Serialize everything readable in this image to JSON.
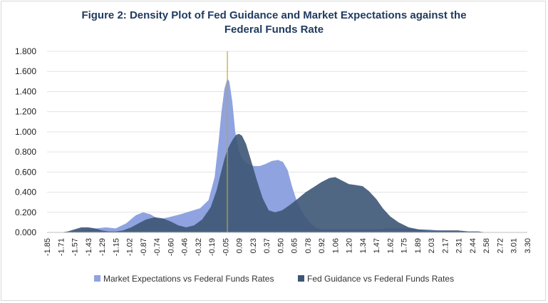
{
  "chart_data": {
    "type": "area",
    "title_line1": "Figure 2: Density Plot of Fed Guidance and Market Expectations against the",
    "title_line2": "Federal Funds Rate",
    "ylim": [
      0,
      1.8
    ],
    "yticks": [
      "0.000",
      "0.200",
      "0.400",
      "0.600",
      "0.800",
      "1.000",
      "1.200",
      "1.400",
      "1.600",
      "1.800"
    ],
    "xlim": [
      -1.85,
      3.3
    ],
    "xticks": [
      "-1.85",
      "-1.71",
      "-1.57",
      "-1.43",
      "-1.29",
      "-1.15",
      "-1.02",
      "-0.87",
      "-0.74",
      "-0.60",
      "-0.46",
      "-0.32",
      "-0.19",
      "-0.05",
      "0.09",
      "0.23",
      "0.37",
      "0.50",
      "0.65",
      "0.78",
      "0.92",
      "1.06",
      "1.20",
      "1.34",
      "1.47",
      "1.62",
      "1.75",
      "1.89",
      "2.03",
      "2.17",
      "2.31",
      "2.44",
      "2.58",
      "2.72",
      "3.01",
      "3.30"
    ],
    "vertical_line_x": -0.03,
    "series": [
      {
        "name": "Market Expectations vs Federal Funds Rates",
        "color": "#8fa3e0",
        "x": [
          -1.71,
          -1.62,
          -1.55,
          -1.45,
          -1.35,
          -1.25,
          -1.15,
          -1.05,
          -0.95,
          -0.87,
          -0.8,
          -0.72,
          -0.62,
          -0.5,
          -0.4,
          -0.3,
          -0.22,
          -0.16,
          -0.12,
          -0.09,
          -0.06,
          -0.03,
          -0.01,
          0.02,
          0.05,
          0.09,
          0.13,
          0.18,
          0.24,
          0.3,
          0.36,
          0.42,
          0.48,
          0.53,
          0.58,
          0.63,
          0.68,
          0.74,
          0.8,
          0.86,
          0.92,
          1.0,
          1.1,
          1.2,
          1.3,
          1.4,
          1.5,
          1.6,
          1.7,
          1.8,
          1.9,
          2.0,
          2.1,
          2.2,
          2.3,
          2.4,
          2.5,
          2.58
        ],
        "y": [
          0.0,
          0.01,
          0.02,
          0.03,
          0.04,
          0.05,
          0.04,
          0.09,
          0.17,
          0.2,
          0.18,
          0.13,
          0.15,
          0.18,
          0.21,
          0.24,
          0.32,
          0.55,
          0.9,
          1.2,
          1.43,
          1.53,
          1.5,
          1.3,
          1.0,
          0.8,
          0.72,
          0.68,
          0.66,
          0.66,
          0.68,
          0.71,
          0.72,
          0.7,
          0.62,
          0.45,
          0.3,
          0.18,
          0.1,
          0.05,
          0.03,
          0.03,
          0.03,
          0.03,
          0.03,
          0.03,
          0.03,
          0.04,
          0.04,
          0.04,
          0.03,
          0.03,
          0.02,
          0.02,
          0.02,
          0.01,
          0.01,
          0.0
        ]
      },
      {
        "name": "Fed Guidance vs Federal Funds Rates",
        "color": "#3d5675",
        "x": [
          -1.71,
          -1.64,
          -1.57,
          -1.5,
          -1.43,
          -1.36,
          -1.29,
          -1.22,
          -1.15,
          -1.08,
          -1.0,
          -0.92,
          -0.84,
          -0.76,
          -0.68,
          -0.6,
          -0.52,
          -0.44,
          -0.36,
          -0.28,
          -0.2,
          -0.14,
          -0.1,
          -0.06,
          -0.03,
          0.0,
          0.03,
          0.06,
          0.09,
          0.12,
          0.16,
          0.21,
          0.27,
          0.33,
          0.39,
          0.45,
          0.52,
          0.6,
          0.68,
          0.76,
          0.84,
          0.92,
          1.0,
          1.06,
          1.12,
          1.2,
          1.28,
          1.34,
          1.4,
          1.47,
          1.54,
          1.62,
          1.7,
          1.8,
          1.9,
          2.0,
          2.1,
          2.2,
          2.3,
          2.4,
          2.5,
          2.58
        ],
        "y": [
          0.0,
          0.01,
          0.03,
          0.05,
          0.05,
          0.04,
          0.02,
          0.01,
          0.01,
          0.02,
          0.05,
          0.09,
          0.13,
          0.15,
          0.14,
          0.11,
          0.07,
          0.05,
          0.07,
          0.13,
          0.25,
          0.42,
          0.58,
          0.73,
          0.82,
          0.88,
          0.93,
          0.97,
          0.98,
          0.96,
          0.88,
          0.72,
          0.52,
          0.34,
          0.22,
          0.2,
          0.22,
          0.27,
          0.33,
          0.4,
          0.45,
          0.5,
          0.54,
          0.55,
          0.52,
          0.48,
          0.47,
          0.46,
          0.41,
          0.33,
          0.24,
          0.16,
          0.1,
          0.05,
          0.03,
          0.02,
          0.02,
          0.02,
          0.02,
          0.01,
          0.01,
          0.0
        ]
      }
    ],
    "legend_position": "bottom",
    "grid": true
  }
}
